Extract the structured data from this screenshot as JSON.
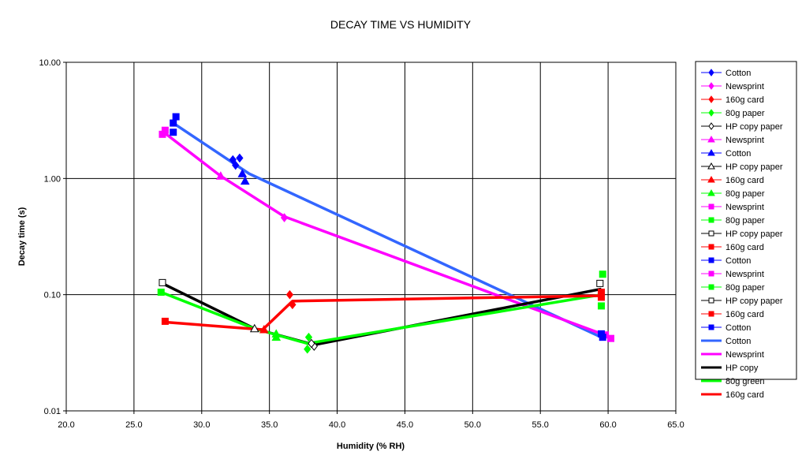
{
  "chart_data": {
    "type": "scatter",
    "title": "DECAY TIME VS HUMIDITY",
    "xlabel": "Humidity (% RH)",
    "ylabel": "Decay time (s)",
    "xlim": [
      20,
      65
    ],
    "ylim": [
      0.01,
      10
    ],
    "yscale": "log",
    "grid": true,
    "legend_position": "right",
    "x_ticks": [
      "20.0",
      "25.0",
      "30.0",
      "35.0",
      "40.0",
      "45.0",
      "50.0",
      "55.0",
      "60.0",
      "65.0"
    ],
    "x_tick_values": [
      20,
      25,
      30,
      35,
      40,
      45,
      50,
      55,
      60,
      65
    ],
    "y_ticks": [
      "10.00",
      "1.00",
      "0.10",
      "0.01"
    ],
    "y_tick_values": [
      10,
      1,
      0.1,
      0.01
    ],
    "marker_series": [
      {
        "name": "Cotton",
        "marker": "diamond",
        "color": "#0000ff",
        "hollow": false,
        "points": [
          [
            32.3,
            1.45
          ],
          [
            32.8,
            1.5
          ],
          [
            32.5,
            1.3
          ]
        ]
      },
      {
        "name": "Newsprint",
        "marker": "diamond",
        "color": "#ff00ff",
        "hollow": false,
        "points": [
          [
            36.1,
            0.46
          ]
        ]
      },
      {
        "name": "160g card",
        "marker": "diamond",
        "color": "#ff0000",
        "hollow": false,
        "points": [
          [
            36.5,
            0.1
          ],
          [
            36.7,
            0.082
          ]
        ]
      },
      {
        "name": "80g paper",
        "marker": "diamond",
        "color": "#00ff00",
        "hollow": false,
        "points": [
          [
            37.8,
            0.034
          ],
          [
            37.9,
            0.043
          ]
        ]
      },
      {
        "name": "HP copy paper",
        "marker": "diamond",
        "color": "#000000",
        "hollow": true,
        "points": [
          [
            38.3,
            0.036
          ],
          [
            38.1,
            0.038
          ]
        ]
      },
      {
        "name": "Newsprint",
        "marker": "triangle",
        "color": "#ff00ff",
        "hollow": false,
        "points": [
          [
            31.4,
            1.05
          ]
        ]
      },
      {
        "name": "Cotton",
        "marker": "triangle",
        "color": "#0000ff",
        "hollow": false,
        "points": [
          [
            33.2,
            0.95
          ],
          [
            33.0,
            1.1
          ]
        ]
      },
      {
        "name": "HP copy paper",
        "marker": "triangle",
        "color": "#000000",
        "hollow": true,
        "points": [
          [
            33.9,
            0.051
          ]
        ]
      },
      {
        "name": "160g card",
        "marker": "triangle",
        "color": "#ff0000",
        "hollow": false,
        "points": [
          [
            34.6,
            0.05
          ]
        ]
      },
      {
        "name": "80g paper",
        "marker": "triangle",
        "color": "#00ff00",
        "hollow": false,
        "points": [
          [
            35.5,
            0.046
          ],
          [
            35.5,
            0.043
          ]
        ]
      },
      {
        "name": "Newsprint",
        "marker": "square",
        "color": "#ff00ff",
        "hollow": false,
        "points": [
          [
            27.1,
            2.4
          ],
          [
            27.3,
            2.6
          ]
        ]
      },
      {
        "name": "80g paper",
        "marker": "square",
        "color": "#00ff00",
        "hollow": false,
        "points": [
          [
            27.0,
            0.105
          ]
        ]
      },
      {
        "name": "HP copy paper",
        "marker": "square",
        "color": "#000000",
        "hollow": true,
        "points": [
          [
            27.1,
            0.127
          ]
        ]
      },
      {
        "name": "160g card",
        "marker": "square",
        "color": "#ff0000",
        "hollow": false,
        "points": [
          [
            27.3,
            0.059
          ]
        ]
      },
      {
        "name": "Cotton",
        "marker": "square",
        "color": "#0000ff",
        "hollow": false,
        "points": [
          [
            27.9,
            2.5
          ],
          [
            27.9,
            3.0
          ],
          [
            28.1,
            3.4
          ]
        ]
      },
      {
        "name": "Newsprint",
        "marker": "square",
        "color": "#ff00ff",
        "hollow": false,
        "points": [
          [
            59.8,
            0.045
          ],
          [
            60.2,
            0.042
          ]
        ]
      },
      {
        "name": "80g paper",
        "marker": "square",
        "color": "#00ff00",
        "hollow": false,
        "points": [
          [
            59.6,
            0.15
          ],
          [
            59.5,
            0.08
          ]
        ]
      },
      {
        "name": "HP copy paper",
        "marker": "square",
        "color": "#000000",
        "hollow": true,
        "points": [
          [
            59.4,
            0.125
          ]
        ]
      },
      {
        "name": "160g card",
        "marker": "square",
        "color": "#ff0000",
        "hollow": false,
        "points": [
          [
            59.5,
            0.105
          ],
          [
            59.5,
            0.095
          ]
        ]
      },
      {
        "name": "Cotton",
        "marker": "square",
        "color": "#0000ff",
        "hollow": false,
        "points": [
          [
            59.6,
            0.043
          ],
          [
            59.5,
            0.046
          ]
        ]
      }
    ],
    "line_series": [
      {
        "name": "Cotton",
        "color": "#3366ff",
        "points": [
          [
            27.9,
            3.0
          ],
          [
            33.5,
            1.1
          ],
          [
            59.5,
            0.043
          ]
        ]
      },
      {
        "name": "Newsprint",
        "color": "#ff00ff",
        "points": [
          [
            27.2,
            2.5
          ],
          [
            31.4,
            1.05
          ],
          [
            36.1,
            0.47
          ],
          [
            60.2,
            0.043
          ]
        ]
      },
      {
        "name": "HP copy",
        "color": "#000000",
        "points": [
          [
            27.1,
            0.125
          ],
          [
            33.9,
            0.051
          ],
          [
            38.3,
            0.037
          ],
          [
            59.5,
            0.112
          ]
        ]
      },
      {
        "name": "80g green",
        "color": "#00ff00",
        "points": [
          [
            27.0,
            0.105
          ],
          [
            33.9,
            0.051
          ],
          [
            37.8,
            0.038
          ],
          [
            59.5,
            0.1
          ]
        ]
      },
      {
        "name": "160g card",
        "color": "#ff0000",
        "points": [
          [
            27.3,
            0.058
          ],
          [
            34.5,
            0.05
          ],
          [
            36.7,
            0.088
          ],
          [
            59.5,
            0.098
          ]
        ]
      }
    ]
  }
}
